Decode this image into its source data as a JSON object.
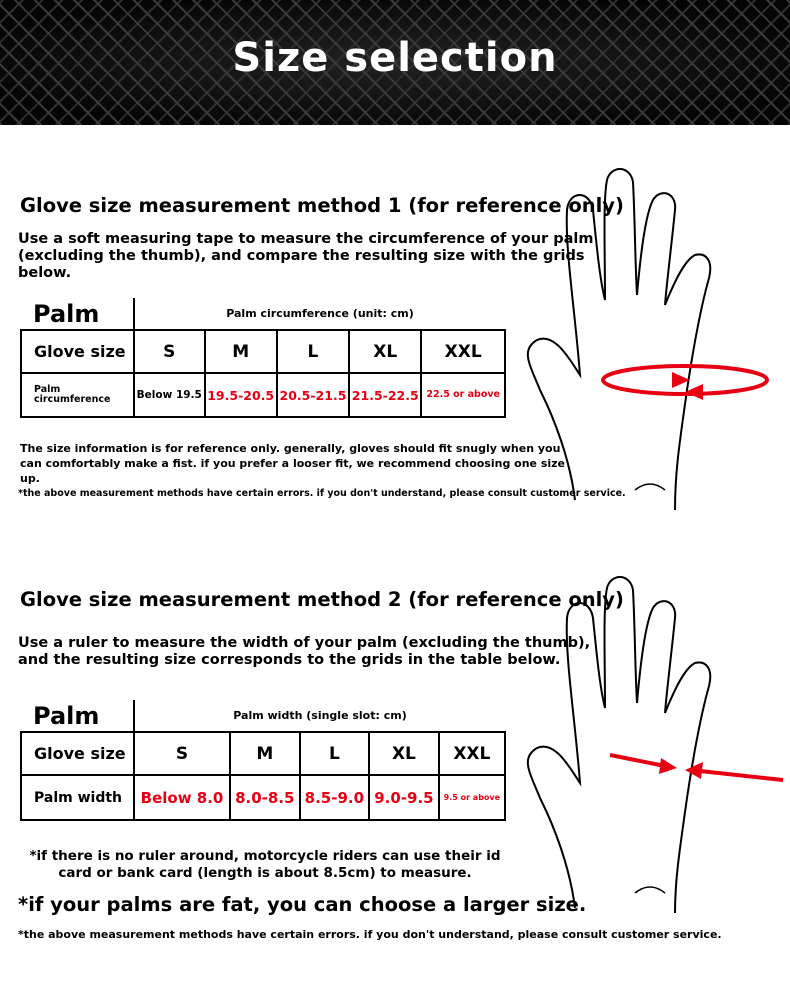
{
  "header": {
    "title": "Size selection"
  },
  "method1": {
    "title": "Glove size measurement method 1 (for reference only)",
    "instructions": "Use a soft measuring tape to measure the circumference of your palm (excluding the thumb), and compare the resulting size with the grids below.",
    "table": {
      "corner": "Palm",
      "caption": "Palm circumference (unit: cm)",
      "size_label": "Glove size",
      "sizes": [
        "S",
        "M",
        "L",
        "XL",
        "XXL"
      ],
      "row_label": "Palm circumference",
      "values": [
        "Below 19.5",
        "19.5-20.5",
        "20.5-21.5",
        "21.5-22.5",
        "22.5 or above"
      ]
    },
    "note": "The size information is for reference only. generally, gloves should fit snugly when you can comfortably make a fist. if you prefer a looser fit, we recommend choosing one size up.",
    "disclaimer": "*the above measurement methods have certain errors. if you don't understand, please consult customer service."
  },
  "method2": {
    "title": "Glove size measurement method 2 (for reference only)",
    "instructions": "Use a ruler to measure the width of your palm (excluding the thumb), and the resulting size corresponds to the grids in the table below.",
    "table": {
      "corner": "Palm",
      "caption": "Palm width (single slot: cm)",
      "size_label": "Glove size",
      "sizes": [
        "S",
        "M",
        "L",
        "XL",
        "XXL"
      ],
      "row_label": "Palm width",
      "values": [
        "Below 8.0",
        "8.0-8.5",
        "8.5-9.0",
        "9.0-9.5",
        "9.5 or above"
      ]
    },
    "ruler_note": "*if there is no ruler around, motorcycle riders can use their id card or bank card (length is about 8.5cm) to measure.",
    "fat_note": "*if your palms are fat, you can choose a larger size.",
    "disclaimer": "*the above measurement methods have certain errors. if you don't understand, please consult customer service."
  },
  "colors": {
    "accent": "#e60012",
    "header_bg": "#111111"
  },
  "icons": [
    "hand-tape-illustration",
    "hand-ruler-illustration"
  ]
}
